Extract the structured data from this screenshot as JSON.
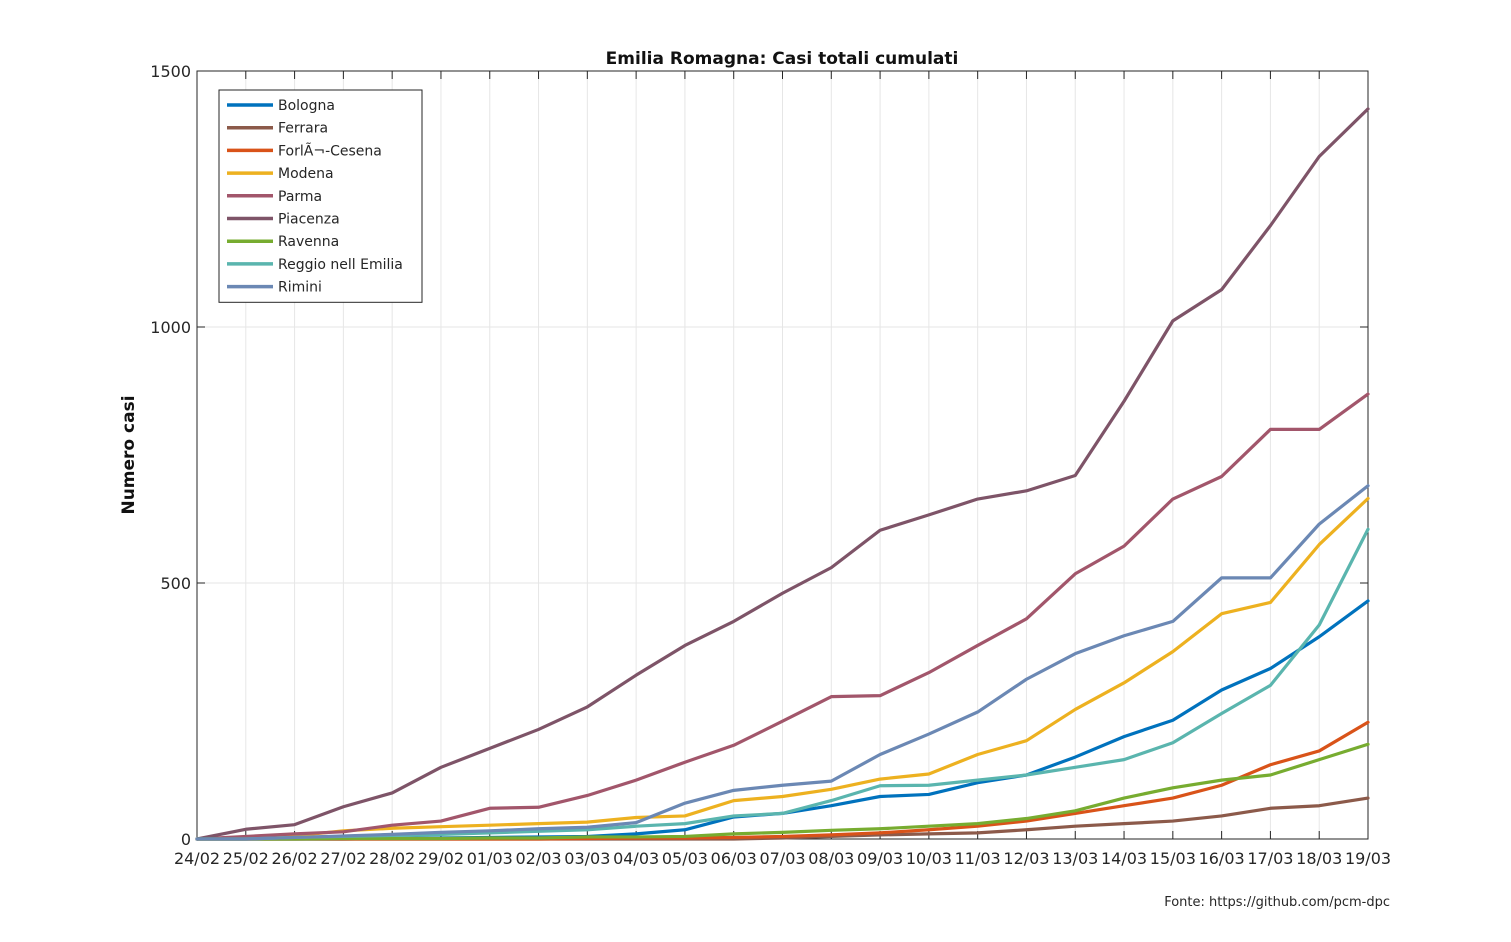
{
  "chart_data": {
    "type": "line",
    "title": "Emilia Romagna: Casi totali cumulati",
    "xlabel": "",
    "ylabel": "Numero casi",
    "ylim": [
      0,
      1500
    ],
    "yticks": [
      "0",
      "500",
      "1000",
      "1500"
    ],
    "grid": true,
    "legend_position": "top-left",
    "source_note": "Fonte: https://github.com/pcm-dpc",
    "categories": [
      "24/02",
      "25/02",
      "26/02",
      "27/02",
      "28/02",
      "29/02",
      "01/03",
      "02/03",
      "03/03",
      "04/03",
      "05/03",
      "06/03",
      "07/03",
      "08/03",
      "09/03",
      "10/03",
      "11/03",
      "12/03",
      "13/03",
      "14/03",
      "15/03",
      "16/03",
      "17/03",
      "18/03",
      "19/03"
    ],
    "series": [
      {
        "name": "Bologna",
        "color": "#0072BD",
        "values": [
          0,
          0,
          0,
          0,
          1,
          2,
          3,
          4,
          5,
          10,
          18,
          43,
          50,
          65,
          83,
          87,
          110,
          125,
          160,
          200,
          232,
          291,
          333,
          395,
          465
        ]
      },
      {
        "name": "Ferrara",
        "color": "#8C5A4A",
        "values": [
          0,
          0,
          0,
          0,
          0,
          0,
          0,
          0,
          0,
          0,
          0,
          0,
          2,
          5,
          8,
          10,
          12,
          18,
          25,
          30,
          35,
          45,
          60,
          65,
          80
        ]
      },
      {
        "name": "Forlì-Cesena",
        "legend_label": "ForlÃ¬-Cesena",
        "color": "#D95319",
        "values": [
          0,
          0,
          0,
          0,
          0,
          0,
          0,
          0,
          1,
          2,
          2,
          3,
          5,
          8,
          12,
          18,
          25,
          35,
          50,
          65,
          80,
          105,
          145,
          172,
          228
        ]
      },
      {
        "name": "Modena",
        "color": "#EDB120",
        "values": [
          0,
          0,
          6,
          16,
          21,
          24,
          27,
          30,
          33,
          42,
          45,
          75,
          83,
          97,
          117,
          127,
          165,
          192,
          253,
          305,
          366,
          440,
          462,
          575,
          665
        ]
      },
      {
        "name": "Parma",
        "color": "#A2566B",
        "values": [
          0,
          5,
          10,
          14,
          27,
          35,
          60,
          62,
          85,
          115,
          150,
          183,
          230,
          278,
          280,
          325,
          378,
          430,
          518,
          572,
          664,
          708,
          800,
          800,
          869
        ]
      },
      {
        "name": "Piacenza",
        "color": "#7E5468",
        "values": [
          0,
          19,
          28,
          63,
          90,
          140,
          177,
          214,
          258,
          320,
          378,
          425,
          480,
          530,
          603,
          633,
          664,
          680,
          710,
          855,
          1012,
          1073,
          1198,
          1333,
          1426
        ]
      },
      {
        "name": "Ravenna",
        "color": "#77AC30",
        "values": [
          0,
          0,
          0,
          1,
          1,
          1,
          2,
          2,
          4,
          4,
          5,
          10,
          13,
          17,
          20,
          25,
          30,
          40,
          55,
          80,
          100,
          115,
          125,
          155,
          185
        ]
      },
      {
        "name": "Reggio nell Emilia",
        "color": "#5AB5AE",
        "values": [
          0,
          0,
          3,
          5,
          7,
          9,
          12,
          15,
          18,
          25,
          30,
          45,
          50,
          75,
          104,
          105,
          115,
          125,
          140,
          155,
          188,
          245,
          300,
          418,
          605
        ]
      },
      {
        "name": "Rimini",
        "color": "#6B88B4",
        "values": [
          0,
          0,
          3,
          6,
          9,
          13,
          16,
          20,
          23,
          32,
          70,
          95,
          105,
          113,
          165,
          205,
          248,
          312,
          362,
          397,
          425,
          510,
          510,
          615,
          690
        ]
      }
    ]
  }
}
